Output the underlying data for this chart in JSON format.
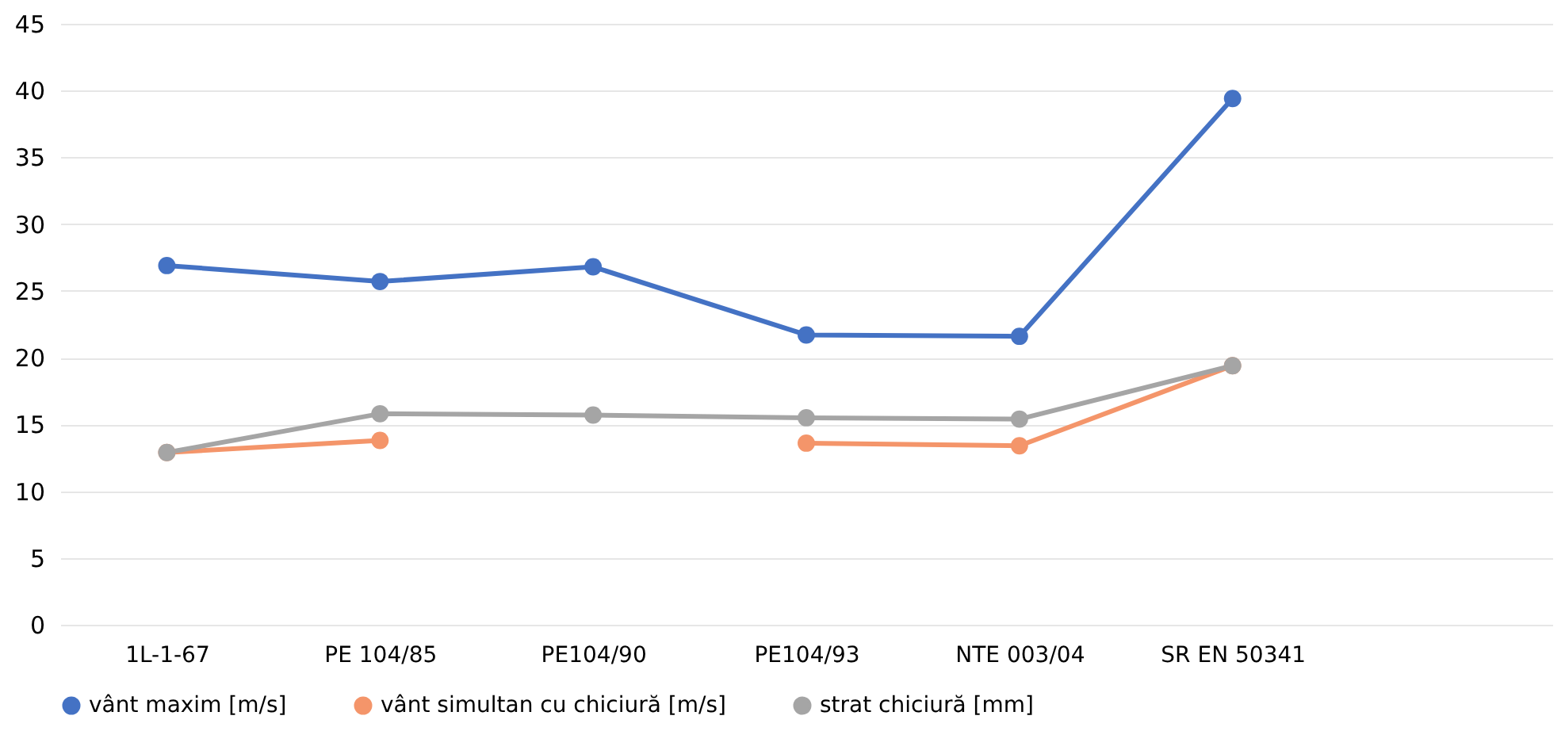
{
  "chart_data": {
    "type": "line",
    "categories": [
      "1L-1-67",
      "PE 104/85",
      "PE104/90",
      "PE104/93",
      "NTE 003/04",
      "SR EN 50341",
      null
    ],
    "series": [
      {
        "name": "vânt maxim [m/s]",
        "color": "#4472c4",
        "values": [
          26.9,
          25.7,
          26.8,
          21.7,
          21.6,
          39.4,
          null
        ]
      },
      {
        "name": "vânt simultan cu chiciură [m/s]",
        "color": "#f4956a",
        "values": [
          12.9,
          13.8,
          null,
          13.6,
          13.4,
          19.4,
          null
        ]
      },
      {
        "name": "strat chiciură [mm]",
        "color": "#a5a5a5",
        "values": [
          12.9,
          15.8,
          15.7,
          15.5,
          15.4,
          19.4,
          null
        ]
      }
    ],
    "ylim": [
      0,
      45
    ],
    "yticks": [
      0,
      5,
      10,
      15,
      20,
      25,
      30,
      35,
      40,
      45
    ],
    "grid": "y",
    "legend": "bottom",
    "marker": "circle",
    "line_style": "solid"
  }
}
